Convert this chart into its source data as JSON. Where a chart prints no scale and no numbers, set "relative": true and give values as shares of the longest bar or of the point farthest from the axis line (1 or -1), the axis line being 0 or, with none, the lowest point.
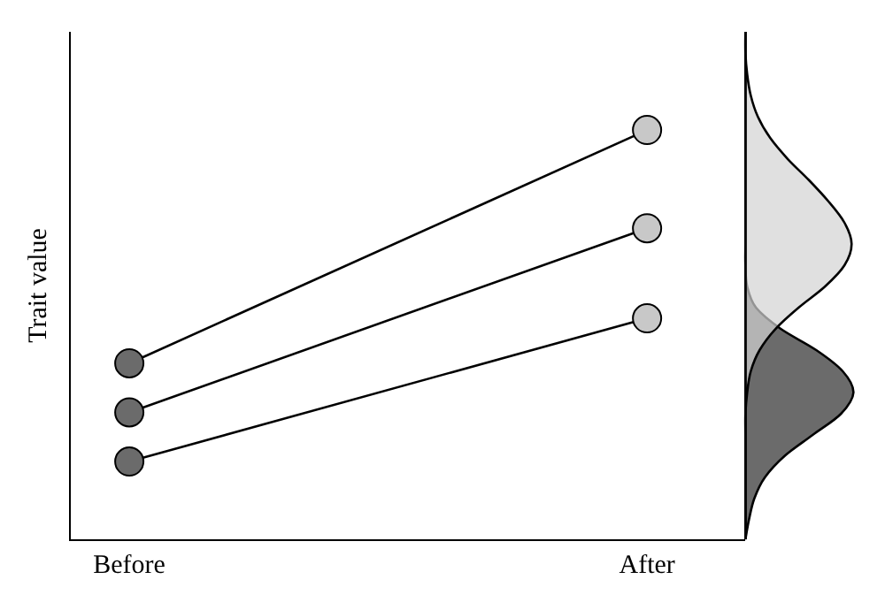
{
  "chart_data": {
    "type": "line",
    "ylabel": "Trait value",
    "categories": [
      "Before",
      "After"
    ],
    "relative": true,
    "marker": "circle",
    "line_style": "solid",
    "tick_labels": "x",
    "series": [
      {
        "color": "#000000",
        "colors": [
          "#6b6b6b",
          "#c8c8c8"
        ],
        "values": [
          0.43,
          1.0
        ]
      },
      {
        "color": "#000000",
        "colors": [
          "#6b6b6b",
          "#c8c8c8"
        ],
        "values": [
          0.31,
          0.76
        ]
      },
      {
        "color": "#000000",
        "colors": [
          "#6b6b6b",
          "#c8c8c8"
        ],
        "values": [
          0.19,
          0.54
        ]
      }
    ]
  }
}
